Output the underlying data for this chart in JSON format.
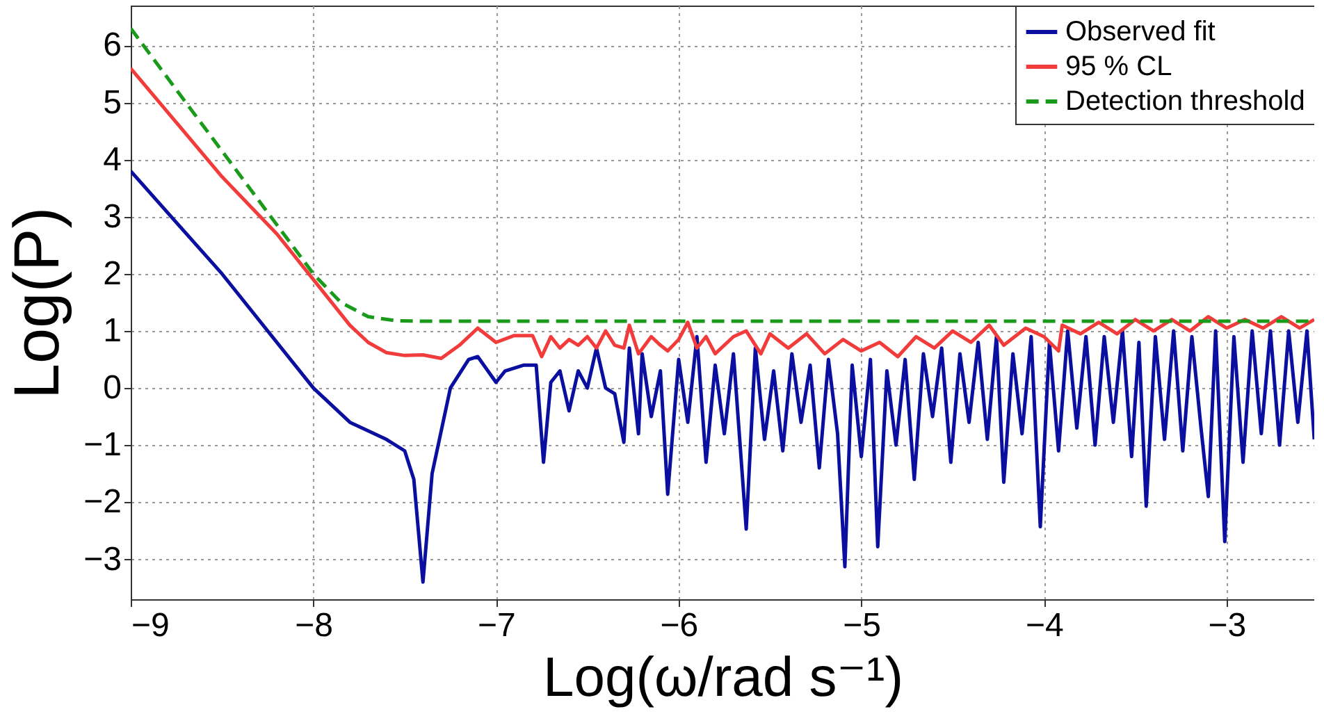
{
  "chart_data": {
    "type": "line",
    "xlabel": "Log(ω/rad s⁻¹)",
    "ylabel": "Log(P)",
    "xlim": [
      -9,
      -2.52
    ],
    "ylim": [
      -3.7,
      6.7
    ],
    "xticks": [
      -9,
      -8,
      -7,
      -6,
      -5,
      -4,
      -3
    ],
    "yticks": [
      -3,
      -2,
      -1,
      0,
      1,
      2,
      3,
      4,
      5,
      6
    ],
    "grid": true,
    "legend": "top right",
    "line_style": "solid",
    "series": [
      {
        "name": "Observed fit",
        "color": "#0a0fa0",
        "x": [
          -9,
          -8.5,
          -8,
          -7.8,
          -7.6,
          -7.5,
          -7.45,
          -7.4,
          -7.35,
          -7.25,
          -7.15,
          -7.1,
          -7.0,
          -6.95,
          -6.85,
          -6.78,
          -6.74,
          -6.7,
          -6.65,
          -6.6,
          -6.55,
          -6.5,
          -6.45,
          -6.4,
          -6.35,
          -6.3,
          -6.27,
          -6.22,
          -6.2,
          -6.15,
          -6.1,
          -6.06,
          -6.0,
          -5.95,
          -5.9,
          -5.85,
          -5.8,
          -5.75,
          -5.7,
          -5.63,
          -5.58,
          -5.53,
          -5.48,
          -5.43,
          -5.38,
          -5.33,
          -5.28,
          -5.23,
          -5.18,
          -5.13,
          -5.09,
          -5.05,
          -5.0,
          -4.95,
          -4.91,
          -4.86,
          -4.81,
          -4.76,
          -4.71,
          -4.66,
          -4.61,
          -4.56,
          -4.51,
          -4.46,
          -4.41,
          -4.36,
          -4.31,
          -4.26,
          -4.22,
          -4.17,
          -4.12,
          -4.07,
          -4.02,
          -3.97,
          -3.92,
          -3.87,
          -3.82,
          -3.77,
          -3.72,
          -3.67,
          -3.62,
          -3.57,
          -3.52,
          -3.48,
          -3.44,
          -3.39,
          -3.34,
          -3.29,
          -3.24,
          -3.19,
          -3.14,
          -3.1,
          -3.06,
          -3.01,
          -2.96,
          -2.91,
          -2.86,
          -2.81,
          -2.76,
          -2.71,
          -2.66,
          -2.61,
          -2.56,
          -2.52
        ],
        "values": [
          3.8,
          2.0,
          0.0,
          -0.6,
          -0.9,
          -1.1,
          -1.6,
          -3.4,
          -1.5,
          0.0,
          0.5,
          0.55,
          0.1,
          0.3,
          0.4,
          0.4,
          -1.3,
          0.1,
          0.3,
          -0.4,
          0.3,
          0.0,
          0.7,
          0.0,
          -0.1,
          -0.95,
          0.7,
          -0.8,
          0.6,
          -0.5,
          0.3,
          -1.86,
          0.5,
          -0.6,
          0.9,
          -1.3,
          0.4,
          -0.8,
          0.6,
          -2.47,
          0.7,
          -0.9,
          0.3,
          -1.1,
          0.6,
          -0.6,
          0.4,
          -1.4,
          0.5,
          -0.8,
          -3.13,
          0.4,
          -1.2,
          0.5,
          -2.78,
          0.3,
          -1.0,
          0.5,
          -1.6,
          0.6,
          -0.5,
          0.7,
          -1.3,
          0.6,
          -0.6,
          0.8,
          -0.9,
          0.9,
          -1.65,
          0.6,
          -0.8,
          0.9,
          -2.43,
          0.8,
          -1.1,
          1.0,
          -0.7,
          0.9,
          -1.0,
          0.9,
          -0.6,
          1.0,
          -1.2,
          0.8,
          -2.07,
          0.9,
          -0.9,
          1.0,
          -1.1,
          0.9,
          -0.7,
          -1.9,
          1.0,
          -2.69,
          0.9,
          -1.3,
          1.0,
          -0.8,
          1.0,
          -1.0,
          1.0,
          -0.6,
          1.0,
          -0.9
        ]
      },
      {
        "name": "95 % CL",
        "color": "#f23b3b",
        "x": [
          -9,
          -8.5,
          -8.2,
          -8,
          -7.8,
          -7.7,
          -7.6,
          -7.5,
          -7.4,
          -7.3,
          -7.2,
          -7.1,
          -7.0,
          -6.9,
          -6.8,
          -6.75,
          -6.7,
          -6.65,
          -6.6,
          -6.55,
          -6.5,
          -6.45,
          -6.4,
          -6.35,
          -6.3,
          -6.27,
          -6.22,
          -6.15,
          -6.1,
          -6.06,
          -6.0,
          -5.95,
          -5.9,
          -5.85,
          -5.8,
          -5.7,
          -5.63,
          -5.55,
          -5.5,
          -5.4,
          -5.3,
          -5.2,
          -5.1,
          -5.0,
          -4.9,
          -4.8,
          -4.7,
          -4.6,
          -4.5,
          -4.4,
          -4.3,
          -4.22,
          -4.1,
          -4.0,
          -3.92,
          -3.9,
          -3.8,
          -3.7,
          -3.6,
          -3.5,
          -3.4,
          -3.3,
          -3.2,
          -3.1,
          -3.0,
          -2.9,
          -2.8,
          -2.7,
          -2.6,
          -2.52
        ],
        "values": [
          5.6,
          3.7,
          2.7,
          1.9,
          1.1,
          0.8,
          0.62,
          0.57,
          0.58,
          0.52,
          0.75,
          1.05,
          0.8,
          0.92,
          0.92,
          0.55,
          0.9,
          0.7,
          0.85,
          0.75,
          0.9,
          0.7,
          1.0,
          0.75,
          0.7,
          1.1,
          0.6,
          0.9,
          0.75,
          0.65,
          0.85,
          1.15,
          0.7,
          0.9,
          0.6,
          0.9,
          1.0,
          0.6,
          0.95,
          0.7,
          0.95,
          0.6,
          0.85,
          0.65,
          0.8,
          0.55,
          0.9,
          0.7,
          1.0,
          0.8,
          1.1,
          0.75,
          1.05,
          0.9,
          0.65,
          1.1,
          0.95,
          1.15,
          0.95,
          1.2,
          1.0,
          1.2,
          1.0,
          1.25,
          1.05,
          1.2,
          1.05,
          1.25,
          1.05,
          1.2
        ]
      },
      {
        "name": "Detection threshold",
        "color": "#1a9a1a",
        "line_style": "dashed",
        "x": [
          -9,
          -8,
          -7.85,
          -7.7,
          -7.55,
          -7.4,
          -2.52
        ],
        "values": [
          6.3,
          2.0,
          1.5,
          1.25,
          1.18,
          1.17,
          1.17
        ]
      }
    ]
  }
}
